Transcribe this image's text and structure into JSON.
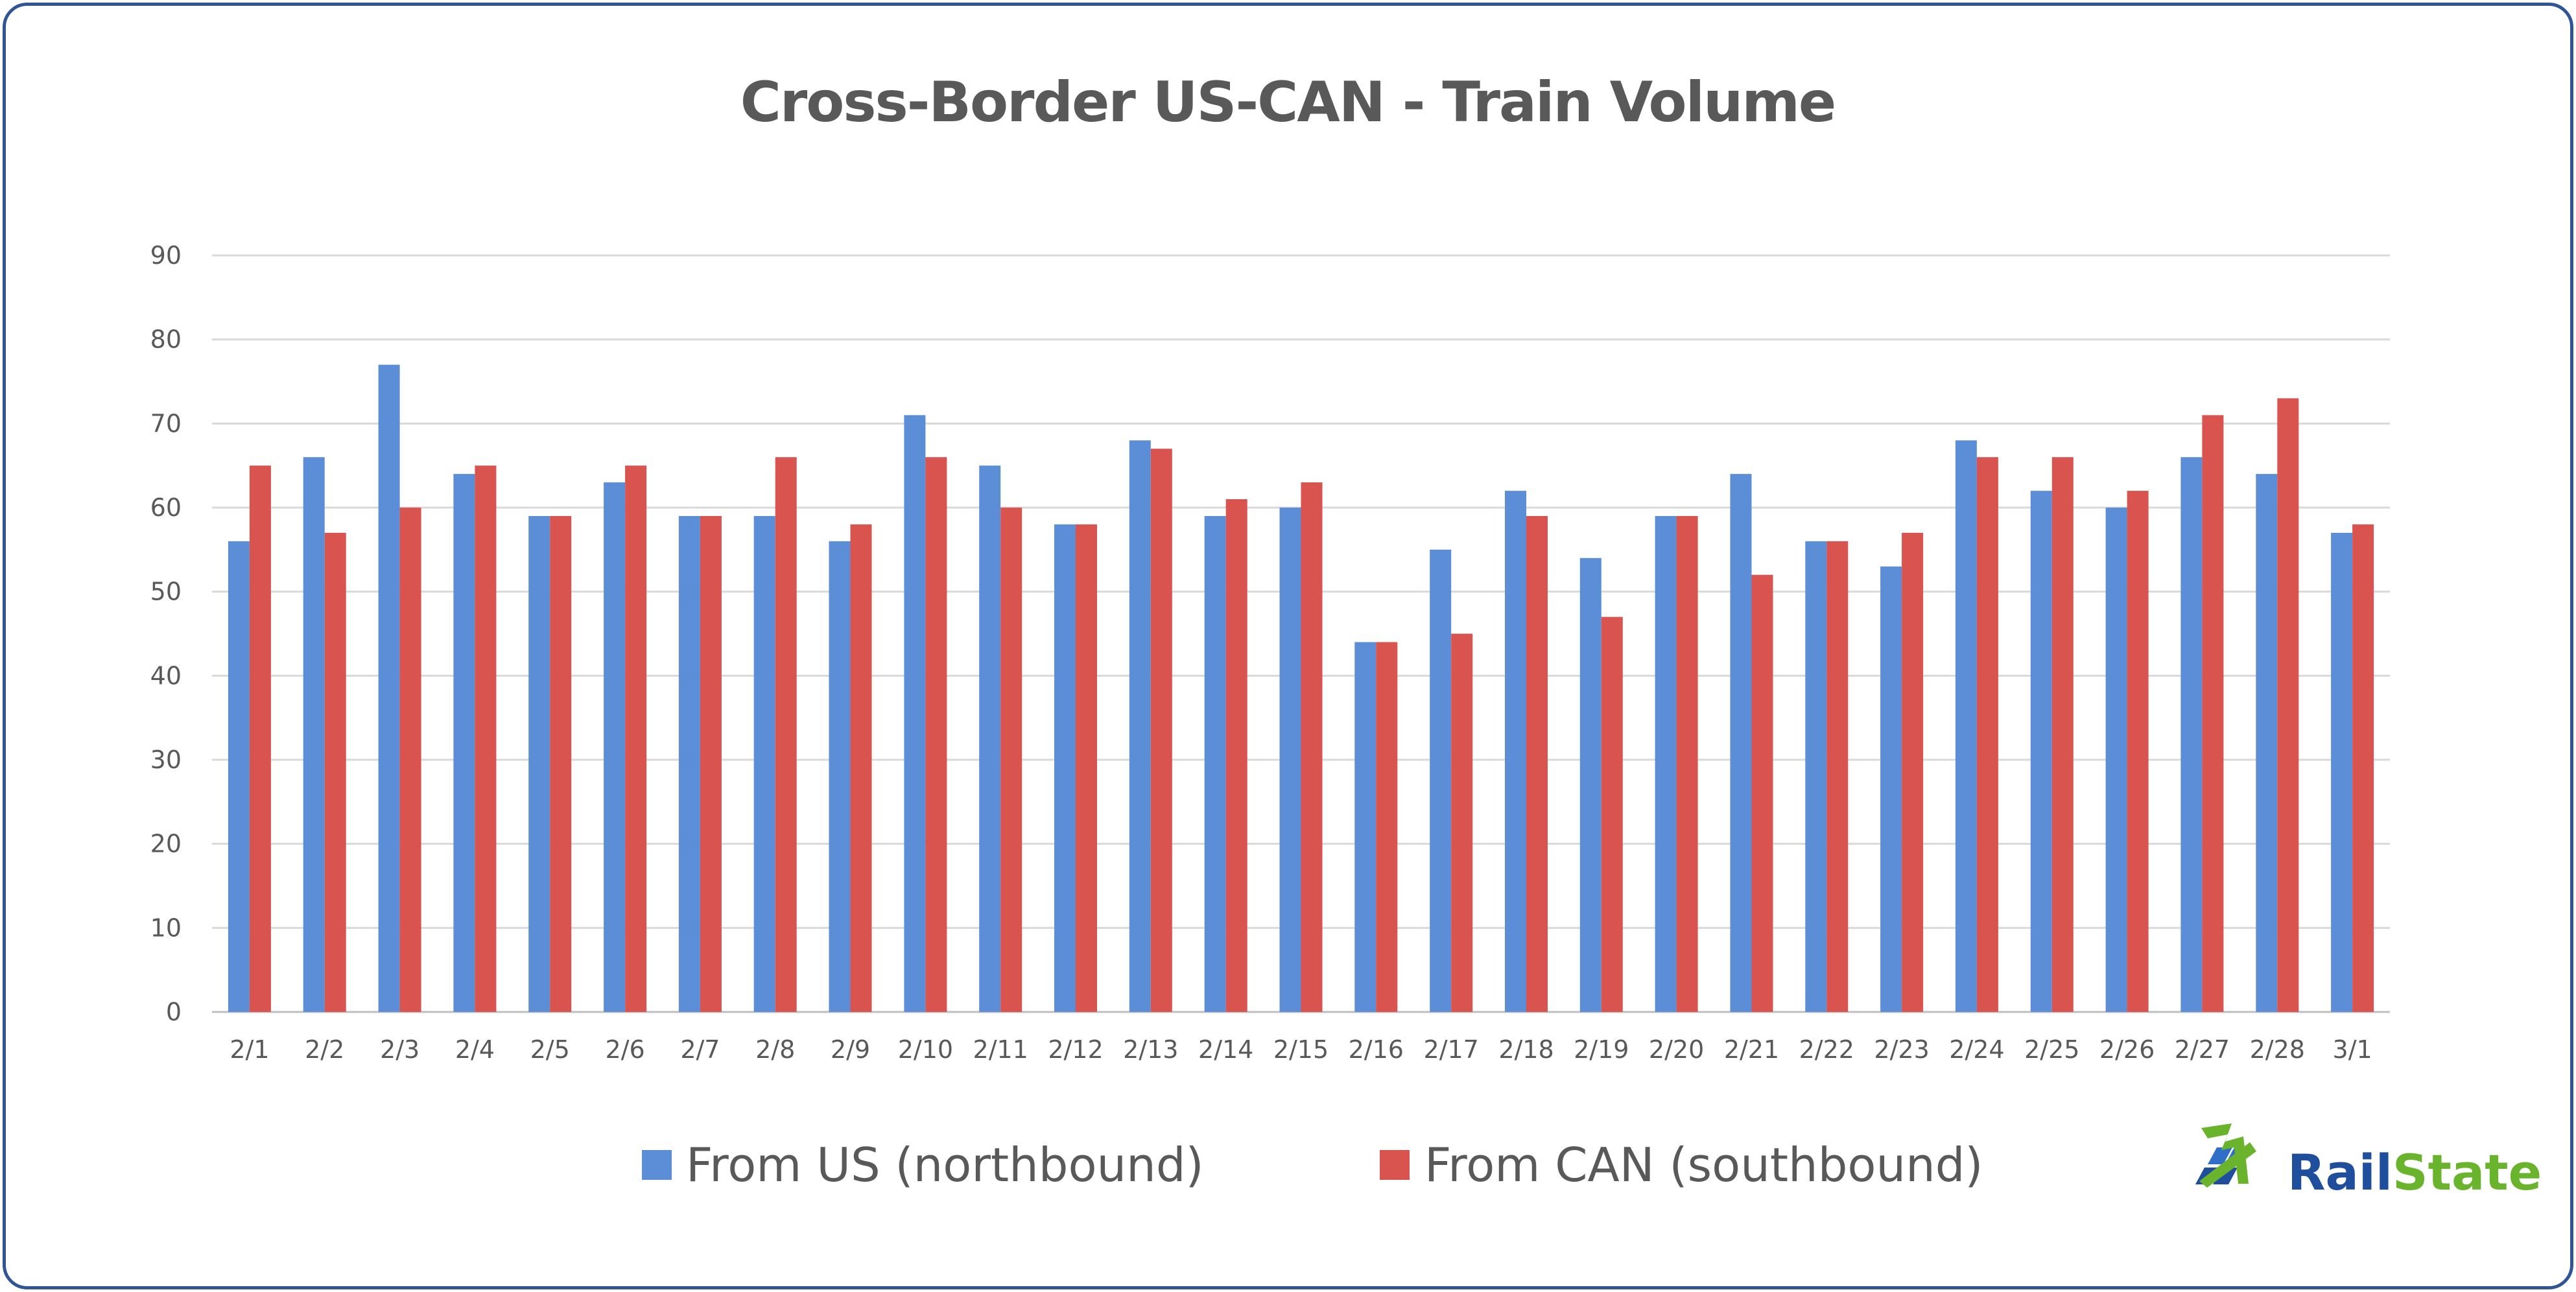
{
  "chart_data": {
    "type": "bar",
    "title": "Cross-Border US-CAN - Train Volume",
    "xlabel": "",
    "ylabel": "",
    "ylim": [
      0,
      90
    ],
    "yticks": [
      0,
      10,
      20,
      30,
      40,
      50,
      60,
      70,
      80,
      90
    ],
    "grid": true,
    "legend_position": "bottom",
    "categories": [
      "2/1",
      "2/2",
      "2/3",
      "2/4",
      "2/5",
      "2/6",
      "2/7",
      "2/8",
      "2/9",
      "2/10",
      "2/11",
      "2/12",
      "2/13",
      "2/14",
      "2/15",
      "2/16",
      "2/17",
      "2/18",
      "2/19",
      "2/20",
      "2/21",
      "2/22",
      "2/23",
      "2/24",
      "2/25",
      "2/26",
      "2/27",
      "2/28",
      "3/1"
    ],
    "series": [
      {
        "name": "From US (northbound)",
        "color": "#5b8ed6",
        "values": [
          56,
          66,
          77,
          64,
          59,
          63,
          59,
          59,
          56,
          71,
          65,
          58,
          68,
          59,
          60,
          44,
          55,
          62,
          54,
          59,
          64,
          56,
          53,
          68,
          62,
          60,
          66,
          64,
          57
        ]
      },
      {
        "name": "From CAN (southbound)",
        "color": "#d9534f",
        "values": [
          65,
          57,
          60,
          65,
          59,
          65,
          59,
          66,
          58,
          66,
          60,
          58,
          67,
          61,
          63,
          44,
          45,
          59,
          47,
          59,
          52,
          56,
          57,
          66,
          66,
          62,
          71,
          73,
          58
        ]
      }
    ]
  },
  "logo": {
    "text_part1": "Rail",
    "text_part2": "State",
    "color_part1": "#1f4e9c",
    "color_part2": "#6ab42d"
  },
  "colors": {
    "frame": "#2f5597",
    "gridline": "#d9d9d9",
    "text": "#595959"
  }
}
